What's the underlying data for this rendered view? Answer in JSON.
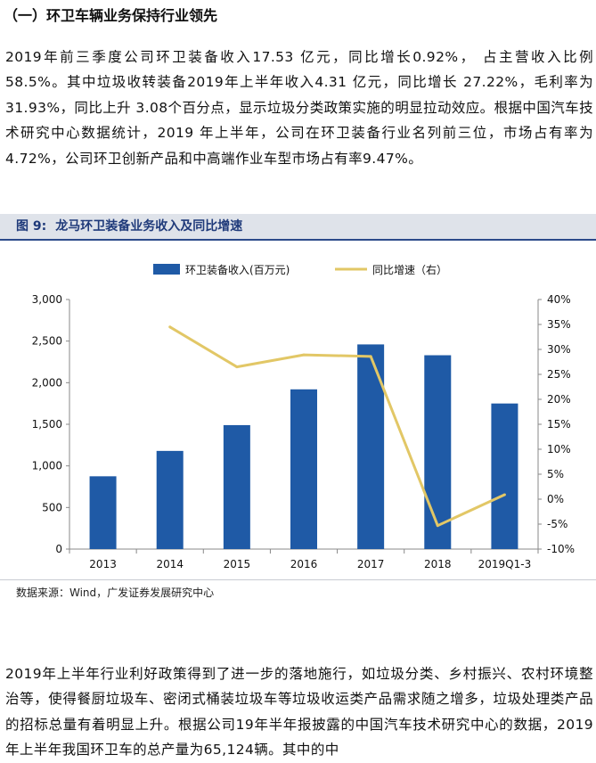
{
  "section": {
    "title": "（一）环卫车辆业务保持行业领先"
  },
  "paragraph1": "2019年前三季度公司环卫装备收入17.53 亿元，同比增长0.92%， 占主营收入比例58.5%。其中垃圾收转装备2019年上半年收入4.31 亿元，同比增长 27.22%，毛利率为 31.93%，同比上升 3.08个百分点，显示垃圾分类政策实施的明显拉动效应。根据中国汽车技术研究中心数据统计，2019 年上半年，公司在环卫装备行业名列前三位，市场占有率为 4.72%，公司环卫创新产品和中高端作业车型市场占有率9.47%。",
  "figure": {
    "label": "图 9:",
    "title": "龙马环卫装备业务收入及同比增速"
  },
  "source": "数据来源：Wind，广发证券发展研究中心",
  "paragraph2": "2019年上半年行业利好政策得到了进一步的落地施行，如垃圾分类、乡村振兴、农村环境整治等，使得餐厨垃圾车、密闭式桶装垃圾车等垃圾收运类产品需求随之增多，垃圾处理类产品的招标总量有着明显上升。根据公司19年半年报披露的中国汽车技术研究中心的数据，2019年上半年我国环卫车的总产量为65,124辆。其中的中",
  "chart_data": {
    "type": "bar",
    "categories": [
      "2013",
      "2014",
      "2015",
      "2016",
      "2017",
      "2018",
      "2019Q1-3"
    ],
    "series": [
      {
        "name": "环卫装备收入(百万元)",
        "type": "bar",
        "axis": "left",
        "color": "#1f5aa6",
        "values": [
          875,
          1180,
          1490,
          1920,
          2460,
          2330,
          1750
        ]
      },
      {
        "name": "同比增速（右）",
        "type": "line",
        "axis": "right",
        "color": "#e2c766",
        "values": [
          null,
          34.5,
          26.5,
          28.9,
          28.6,
          -5.3,
          0.9
        ]
      }
    ],
    "left_axis": {
      "ticks": [
        "0",
        "500",
        "1,000",
        "1,500",
        "2,000",
        "2,500",
        "3,000"
      ],
      "ylim": [
        0,
        3000
      ]
    },
    "right_axis": {
      "ticks": [
        "-10%",
        "-5%",
        "0%",
        "5%",
        "10%",
        "15%",
        "20%",
        "25%",
        "30%",
        "35%",
        "40%"
      ],
      "ylim": [
        -10,
        40
      ]
    },
    "legend": "top-center",
    "grid": false
  }
}
